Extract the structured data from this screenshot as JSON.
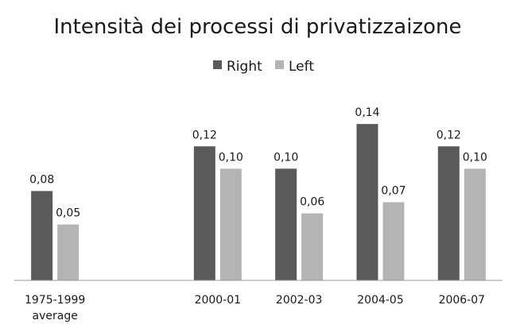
{
  "chart_data": {
    "type": "bar",
    "title": "Intensità dei processi di privatizzaizone",
    "categories": [
      [
        "1975-1999",
        "average"
      ],
      [],
      [
        "2000-01"
      ],
      [
        "2002-03"
      ],
      [
        "2004-05"
      ],
      [
        "2006-07"
      ]
    ],
    "series": [
      {
        "name": "Right",
        "color": "#5a5a5a",
        "values": [
          0.08,
          null,
          0.12,
          0.1,
          0.14,
          0.12
        ],
        "labels": [
          "0,08",
          "",
          "0,12",
          "0,10",
          "0,14",
          "0,12"
        ]
      },
      {
        "name": "Left",
        "color": "#b4b4b4",
        "values": [
          0.05,
          null,
          0.1,
          0.06,
          0.07,
          0.1
        ],
        "labels": [
          "0,05",
          "",
          "0,10",
          "0,06",
          "0,07",
          "0,10"
        ]
      }
    ],
    "ylim": [
      0,
      0.16
    ],
    "grid": false,
    "legend_position": "top-center"
  }
}
